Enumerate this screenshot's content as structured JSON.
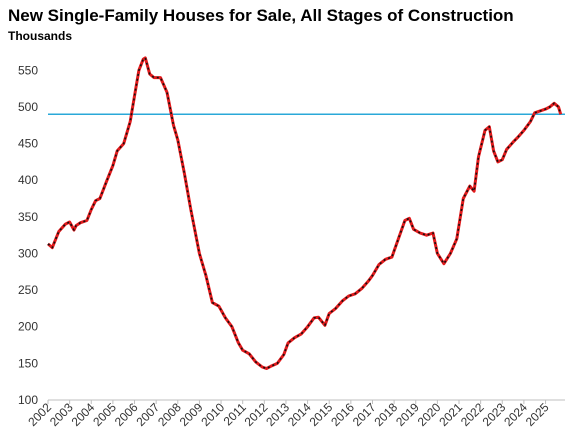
{
  "chart_data": {
    "type": "line",
    "title": "New Single-Family Houses for Sale, All Stages of Construction",
    "subtitle": "Thousands",
    "xlabel": "",
    "ylabel": "",
    "xlim": [
      2002,
      2025.9
    ],
    "ylim": [
      100,
      575
    ],
    "yticks": [
      100,
      150,
      200,
      250,
      300,
      350,
      400,
      450,
      500,
      550
    ],
    "xticks": [
      "2002",
      "2003",
      "2004",
      "2005",
      "2006",
      "2007",
      "2008",
      "2009",
      "2010",
      "2011",
      "2012",
      "2013",
      "2014",
      "2015",
      "2016",
      "2017",
      "2018",
      "2019",
      "2020",
      "2021",
      "2022",
      "2023",
      "2024",
      "2025"
    ],
    "grid": false,
    "reference_line": {
      "y": 490,
      "color": "#2aa8d8"
    },
    "series": [
      {
        "color": "#e31a1c",
        "x": [
          2002.0,
          2002.2,
          2002.5,
          2002.8,
          2003.0,
          2003.2,
          2003.3,
          2003.5,
          2003.8,
          2004.0,
          2004.2,
          2004.4,
          2004.7,
          2005.0,
          2005.2,
          2005.5,
          2005.8,
          2006.0,
          2006.2,
          2006.4,
          2006.5,
          2006.7,
          2006.9,
          2007.2,
          2007.5,
          2007.8,
          2008.0,
          2008.3,
          2008.6,
          2009.0,
          2009.3,
          2009.6,
          2009.9,
          2010.2,
          2010.5,
          2010.8,
          2011.0,
          2011.3,
          2011.6,
          2011.9,
          2012.1,
          2012.3,
          2012.6,
          2012.9,
          2013.1,
          2013.4,
          2013.7,
          2014.0,
          2014.3,
          2014.5,
          2014.8,
          2015.0,
          2015.3,
          2015.6,
          2015.9,
          2016.2,
          2016.5,
          2016.8,
          2017.0,
          2017.3,
          2017.6,
          2017.9,
          2018.2,
          2018.5,
          2018.7,
          2018.9,
          2019.2,
          2019.5,
          2019.8,
          2020.0,
          2020.3,
          2020.6,
          2020.9,
          2021.2,
          2021.5,
          2021.7,
          2021.9,
          2022.2,
          2022.4,
          2022.6,
          2022.8,
          2023.0,
          2023.2,
          2023.5,
          2023.7,
          2024.0,
          2024.3,
          2024.5,
          2024.8,
          2025.0,
          2025.2,
          2025.4,
          2025.6,
          2025.7
        ],
        "y": [
          313,
          308,
          330,
          340,
          343,
          332,
          338,
          342,
          345,
          360,
          372,
          375,
          398,
          420,
          440,
          450,
          480,
          515,
          550,
          565,
          567,
          545,
          540,
          540,
          520,
          475,
          455,
          410,
          360,
          300,
          270,
          233,
          228,
          212,
          200,
          178,
          168,
          163,
          152,
          145,
          143,
          146,
          150,
          162,
          178,
          185,
          190,
          200,
          212,
          213,
          202,
          218,
          225,
          235,
          242,
          245,
          252,
          262,
          270,
          285,
          292,
          295,
          320,
          345,
          348,
          333,
          328,
          325,
          328,
          300,
          286,
          300,
          320,
          375,
          392,
          385,
          432,
          468,
          473,
          440,
          425,
          428,
          442,
          452,
          458,
          468,
          480,
          492,
          495,
          497,
          500,
          505,
          500,
          490
        ]
      }
    ]
  }
}
